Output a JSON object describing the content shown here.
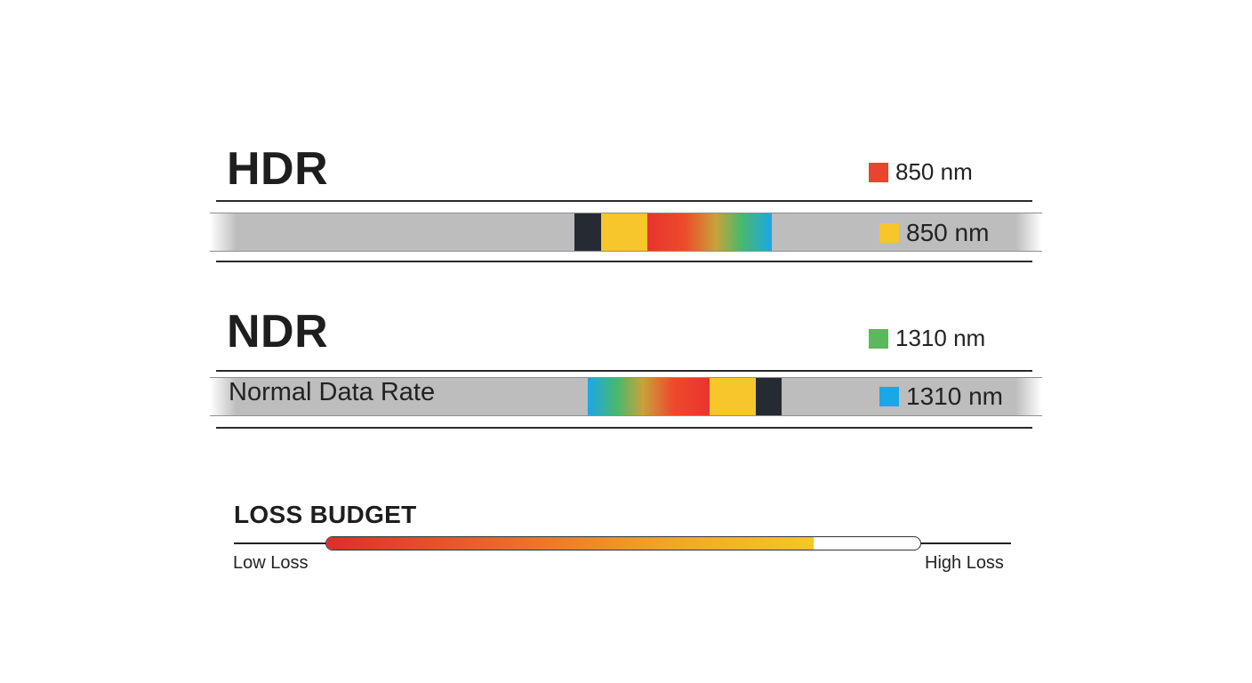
{
  "hdr": {
    "title": "HDR",
    "legend_top": {
      "label": "850 nm",
      "color": "#e8442e",
      "icon": "red-square"
    },
    "legend_cable": {
      "label": "850 nm",
      "color": "#f6c62a",
      "icon": "yellow-square"
    }
  },
  "ndr": {
    "title": "NDR",
    "cable_label": "Normal Data Rate",
    "legend_top": {
      "label": "1310 nm",
      "color": "#5cb85c",
      "icon": "green-square"
    },
    "legend_cable": {
      "label": "1310 nm",
      "color": "#1aa7e8",
      "icon": "blue-square"
    }
  },
  "loss_budget": {
    "title": "LOSS BUDGET",
    "low_label": "Low Loss",
    "high_label": "High Loss",
    "level": 0.82
  }
}
